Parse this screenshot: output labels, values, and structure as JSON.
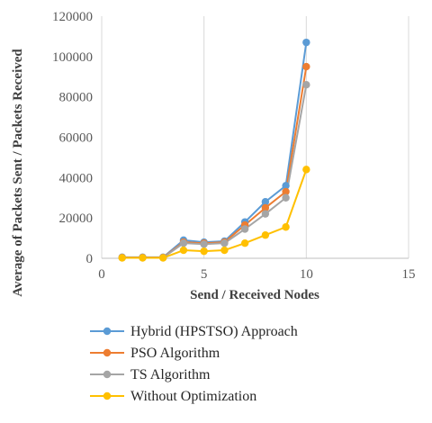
{
  "chart_data": {
    "type": "line",
    "xlabel": "Send / Received Nodes",
    "ylabel": "Average of Packets Sent / Packets Received",
    "xlim": [
      0,
      15
    ],
    "ylim": [
      0,
      120000
    ],
    "xticks": [
      0,
      5,
      10,
      15
    ],
    "yticks": [
      0,
      20000,
      40000,
      60000,
      80000,
      100000,
      120000
    ],
    "x_tick_labels": [
      "0",
      "5",
      "10",
      "15"
    ],
    "y_tick_labels": [
      "0",
      "20000",
      "40000",
      "60000",
      "80000",
      "100000",
      "120000"
    ],
    "grid": "vertical",
    "legend_position": "bottom",
    "x": [
      1,
      2,
      3,
      4,
      5,
      6,
      7,
      8,
      9,
      10
    ],
    "series": [
      {
        "name": "Hybrid (HPSTSO) Approach",
        "color": "#5b9bd5",
        "values": [
          500,
          500,
          500,
          9000,
          8000,
          8500,
          18000,
          28000,
          36000,
          107000
        ]
      },
      {
        "name": "PSO Algorithm",
        "color": "#ed7d31",
        "values": [
          400,
          400,
          400,
          8000,
          7500,
          8000,
          16500,
          25000,
          33000,
          95000
        ]
      },
      {
        "name": "TS Algorithm",
        "color": "#a5a5a5",
        "values": [
          300,
          300,
          300,
          7500,
          7000,
          7500,
          14500,
          22000,
          30000,
          86000
        ]
      },
      {
        "name": "Without Optimization",
        "color": "#ffc000",
        "values": [
          200,
          200,
          200,
          4000,
          3500,
          4000,
          7500,
          11500,
          15500,
          44000
        ]
      }
    ]
  }
}
